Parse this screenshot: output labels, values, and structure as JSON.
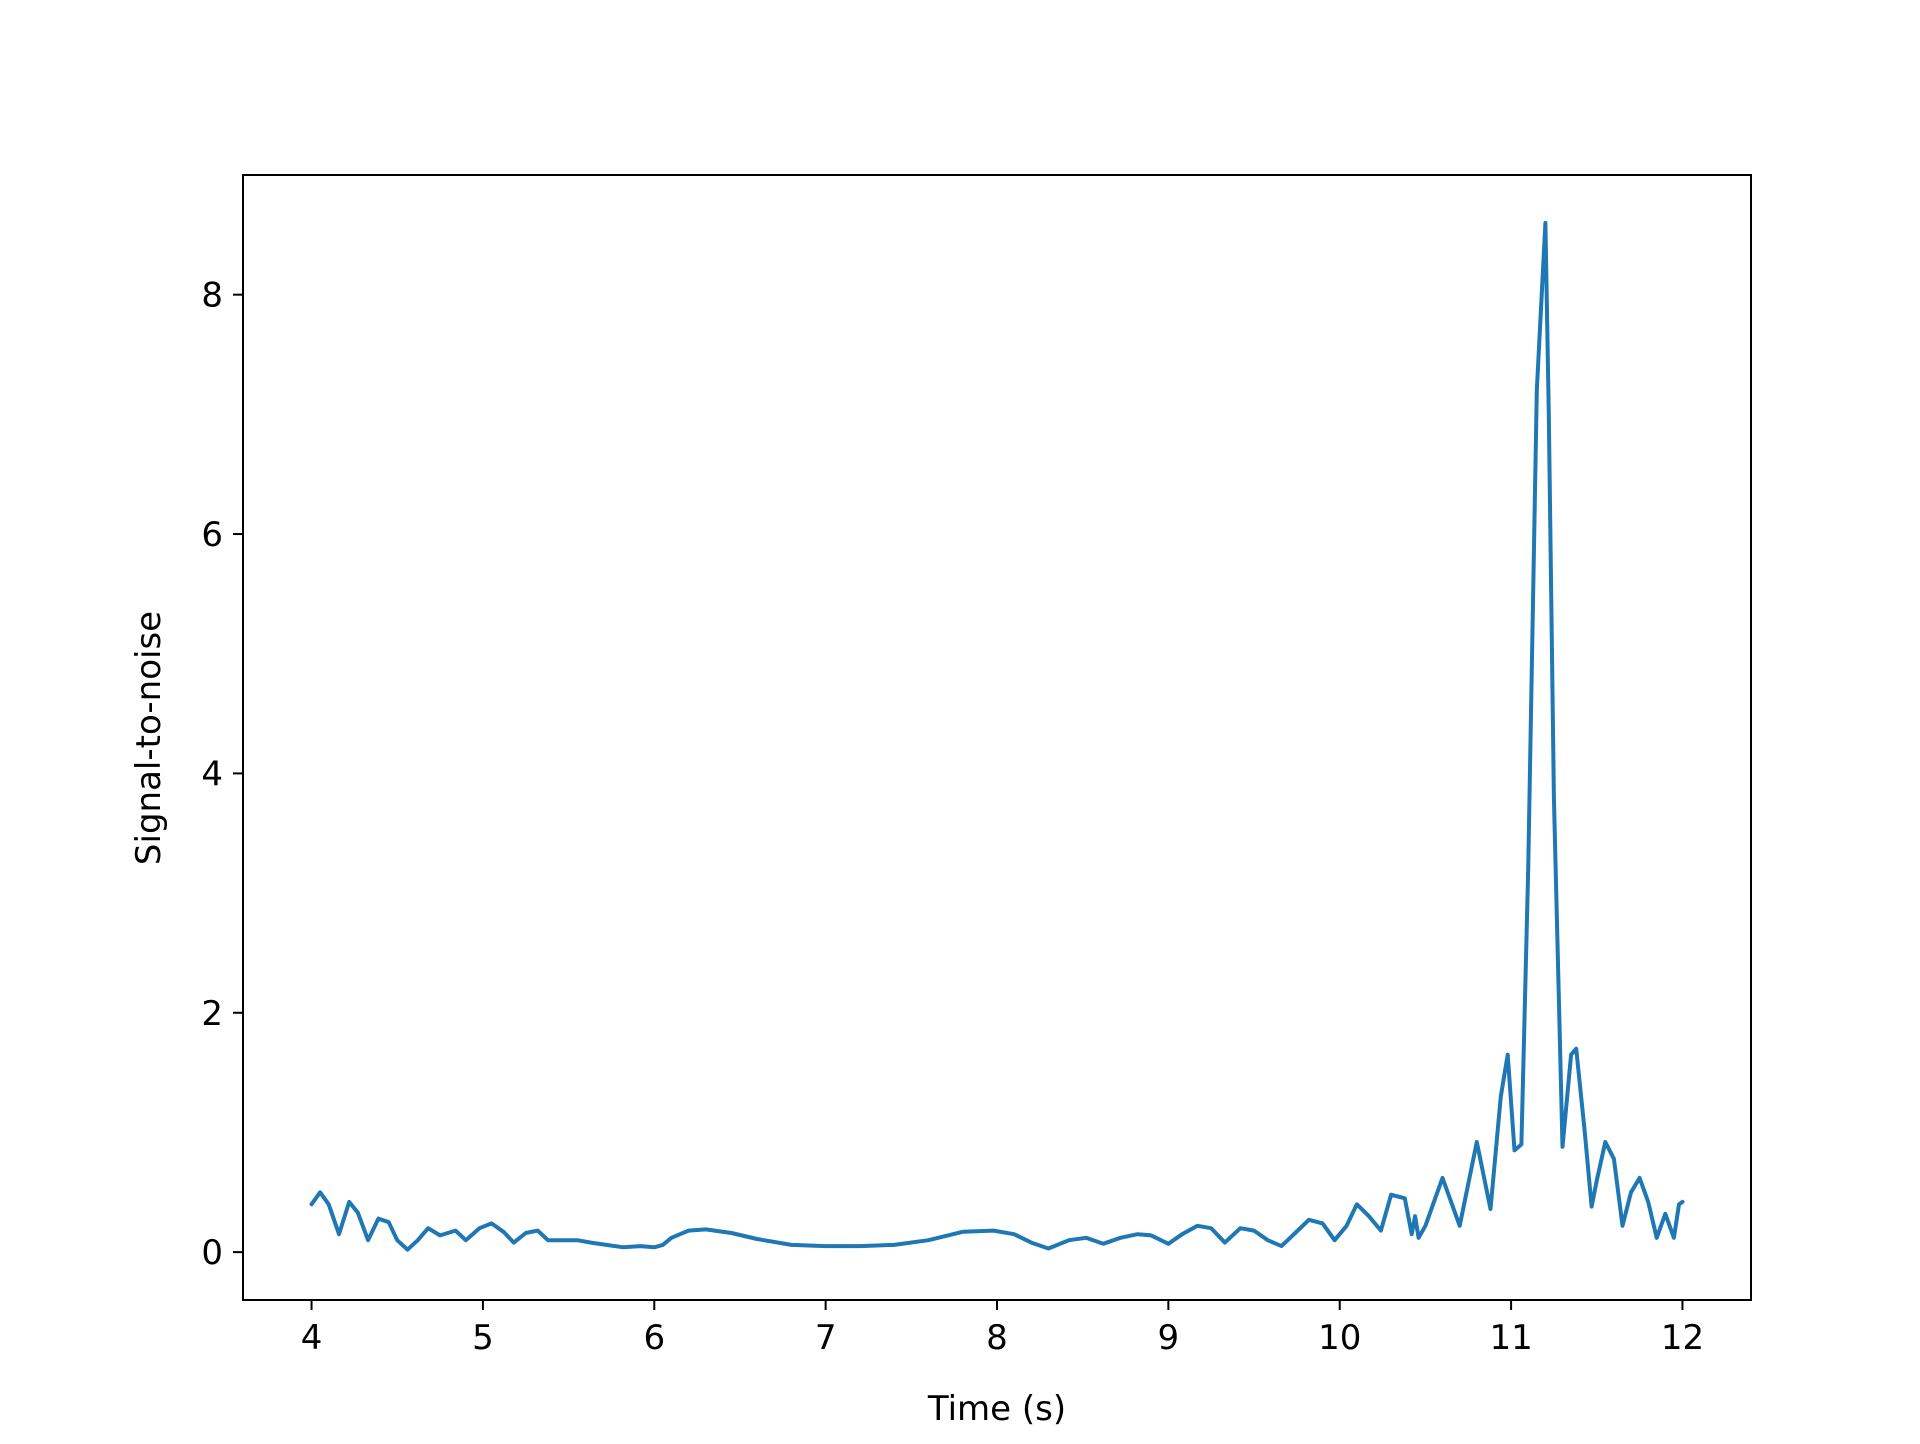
{
  "chart_data": {
    "type": "line",
    "title": "",
    "xlabel": "Time (s)",
    "ylabel": "Signal-to-noise",
    "xlim": [
      3.6,
      12.4
    ],
    "ylim": [
      -0.4,
      9.0
    ],
    "x_ticks": [
      4,
      5,
      6,
      7,
      8,
      9,
      10,
      11,
      12
    ],
    "x_tick_labels": [
      "4",
      "5",
      "6",
      "7",
      "8",
      "9",
      "10",
      "11",
      "12"
    ],
    "y_ticks": [
      0,
      2,
      4,
      6,
      8
    ],
    "y_tick_labels": [
      "0",
      "2",
      "4",
      "6",
      "8"
    ],
    "grid": false,
    "legend": "none",
    "series": [
      {
        "color": "#1f77b4",
        "x": [
          4.0,
          4.05,
          4.1,
          4.16,
          4.22,
          4.27,
          4.33,
          4.39,
          4.45,
          4.5,
          4.56,
          4.62,
          4.68,
          4.75,
          4.84,
          4.9,
          4.98,
          5.05,
          5.12,
          5.18,
          5.25,
          5.32,
          5.38,
          5.45,
          5.55,
          5.63,
          5.72,
          5.82,
          5.92,
          6.0,
          6.05,
          6.1,
          6.2,
          6.3,
          6.45,
          6.6,
          6.8,
          7.0,
          7.2,
          7.4,
          7.6,
          7.8,
          7.98,
          8.1,
          8.2,
          8.3,
          8.42,
          8.52,
          8.62,
          8.72,
          8.82,
          8.9,
          9.0,
          9.08,
          9.17,
          9.25,
          9.33,
          9.42,
          9.5,
          9.58,
          9.66,
          9.74,
          9.82,
          9.9,
          9.97,
          10.04,
          10.1,
          10.17,
          10.24,
          10.3,
          10.38,
          10.42,
          10.44,
          10.46,
          10.5,
          10.6,
          10.7,
          10.8,
          10.88,
          10.94,
          10.98,
          11.02,
          11.06,
          11.1,
          11.15,
          11.2,
          11.22,
          11.25,
          11.3,
          11.35,
          11.38,
          11.43,
          11.47,
          11.5,
          11.55,
          11.6,
          11.65,
          11.7,
          11.75,
          11.8,
          11.85,
          11.9,
          11.95,
          11.98,
          12.0
        ],
        "y": [
          0.4,
          0.5,
          0.4,
          0.15,
          0.42,
          0.33,
          0.1,
          0.28,
          0.25,
          0.1,
          0.02,
          0.1,
          0.2,
          0.14,
          0.18,
          0.1,
          0.2,
          0.24,
          0.17,
          0.08,
          0.16,
          0.18,
          0.1,
          0.1,
          0.1,
          0.08,
          0.06,
          0.04,
          0.05,
          0.04,
          0.06,
          0.12,
          0.18,
          0.19,
          0.16,
          0.11,
          0.06,
          0.05,
          0.05,
          0.06,
          0.1,
          0.17,
          0.18,
          0.15,
          0.08,
          0.03,
          0.1,
          0.12,
          0.07,
          0.12,
          0.15,
          0.14,
          0.07,
          0.15,
          0.22,
          0.2,
          0.08,
          0.2,
          0.18,
          0.1,
          0.05,
          0.16,
          0.27,
          0.24,
          0.1,
          0.22,
          0.4,
          0.3,
          0.18,
          0.48,
          0.45,
          0.15,
          0.3,
          0.12,
          0.22,
          0.62,
          0.22,
          0.92,
          0.36,
          1.3,
          1.65,
          0.85,
          0.9,
          3.2,
          7.2,
          8.6,
          7.0,
          3.8,
          0.88,
          1.65,
          1.7,
          1.0,
          0.38,
          0.6,
          0.92,
          0.78,
          0.22,
          0.5,
          0.62,
          0.42,
          0.12,
          0.32,
          0.12,
          0.4,
          0.42
        ]
      }
    ]
  }
}
